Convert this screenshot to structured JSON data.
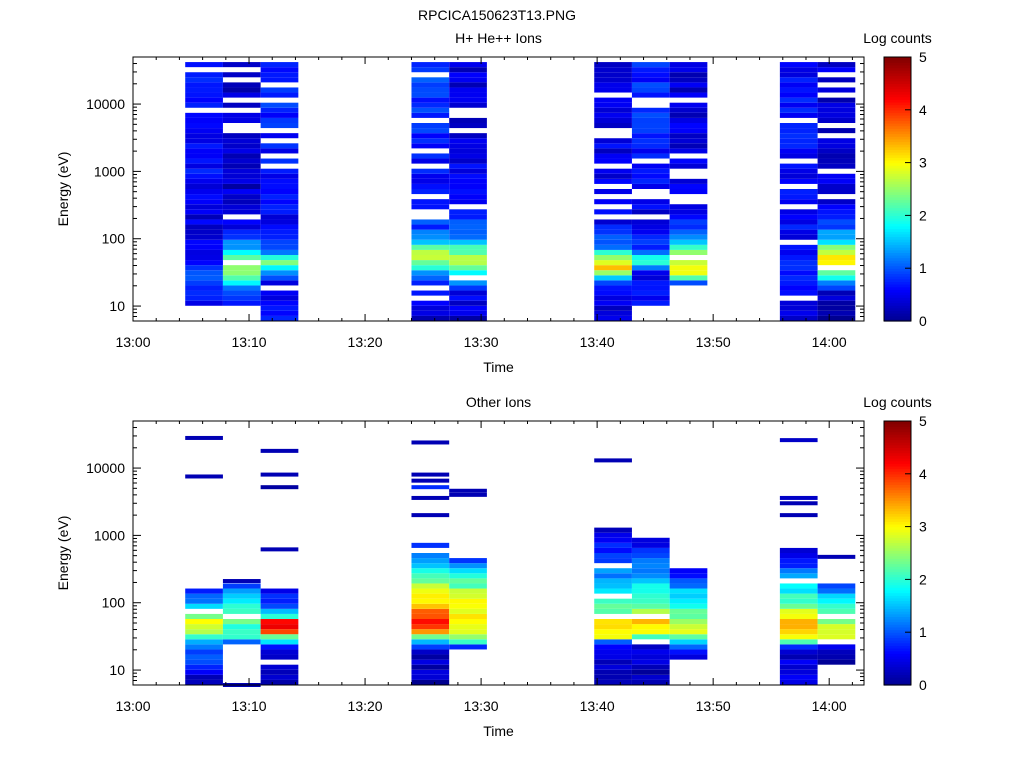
{
  "figure_title": "RPCICA150623T13.PNG",
  "colors": {
    "jet": [
      "#00008f",
      "#0000ff",
      "#00ffff",
      "#ffff00",
      "#ff0000",
      "#800000"
    ]
  },
  "chart_data": [
    {
      "type": "heatmap",
      "title": "H+ He++ Ions",
      "xlabel": "Time",
      "ylabel": "Energy (eV)",
      "x_axis": {
        "type": "time",
        "range": [
          "13:00",
          "14:03"
        ],
        "ticks": [
          "13:00",
          "13:10",
          "13:20",
          "13:30",
          "13:40",
          "13:50",
          "14:00"
        ]
      },
      "y_axis": {
        "scale": "log",
        "range": [
          6,
          50000
        ],
        "ticks": [
          10,
          100,
          1000,
          10000
        ],
        "tick_labels": [
          "10",
          "100",
          "1000",
          "10000"
        ]
      },
      "colorbar": {
        "label": "Log counts",
        "range": [
          0,
          5
        ],
        "ticks": [
          0,
          1,
          2,
          3,
          4,
          5
        ],
        "colormap": "jet"
      },
      "sweeps": [
        {
          "start": "13:04:30",
          "end": "13:07:45",
          "energy_range": [
            9.5,
            45000
          ],
          "profile": [
            [
              9.5,
              0.5
            ],
            [
              15,
              0.7
            ],
            [
              25,
              1.2
            ],
            [
              40,
              0.8
            ],
            [
              80,
              0.5
            ],
            [
              200,
              0.4
            ],
            [
              1000,
              0.6
            ],
            [
              10000,
              0.7
            ],
            [
              45000,
              0.6
            ]
          ]
        },
        {
          "start": "13:07:45",
          "end": "13:11:00",
          "energy_range": [
            9.5,
            45000
          ],
          "profile": [
            [
              9.5,
              0.6
            ],
            [
              15,
              0.8
            ],
            [
              30,
              2.6
            ],
            [
              45,
              2.4
            ],
            [
              70,
              1.4
            ],
            [
              150,
              0.4
            ],
            [
              1000,
              0.3
            ],
            [
              10000,
              0.4
            ],
            [
              45000,
              0.2
            ]
          ]
        },
        {
          "start": "13:11:00",
          "end": "13:14:15",
          "energy_range": [
            6,
            45000
          ],
          "profile": [
            [
              6,
              0.6
            ],
            [
              20,
              0.3
            ],
            [
              35,
              1.5
            ],
            [
              45,
              2.7
            ],
            [
              60,
              1.0
            ],
            [
              150,
              0.5
            ],
            [
              1000,
              0.6
            ],
            [
              10000,
              0.8
            ],
            [
              45000,
              0.7
            ]
          ]
        },
        {
          "start": "13:24:00",
          "end": "13:27:15",
          "energy_range": [
            6,
            45000
          ],
          "profile": [
            [
              6,
              0.3
            ],
            [
              15,
              0.6
            ],
            [
              25,
              0.8
            ],
            [
              40,
              2.0
            ],
            [
              60,
              2.8
            ],
            [
              80,
              1.8
            ],
            [
              150,
              0.9
            ],
            [
              1000,
              0.6
            ],
            [
              10000,
              0.8
            ],
            [
              45000,
              0.9
            ]
          ]
        },
        {
          "start": "13:27:15",
          "end": "13:30:30",
          "energy_range": [
            6,
            45000
          ],
          "profile": [
            [
              6,
              0.3
            ],
            [
              15,
              0.5
            ],
            [
              30,
              1.6
            ],
            [
              45,
              2.6
            ],
            [
              70,
              2.2
            ],
            [
              120,
              1.0
            ],
            [
              1000,
              0.5
            ],
            [
              10000,
              0.4
            ],
            [
              45000,
              0.4
            ]
          ]
        },
        {
          "start": "13:39:45",
          "end": "13:43:00",
          "energy_range": [
            6,
            45000
          ],
          "profile": [
            [
              6,
              0.3
            ],
            [
              15,
              0.6
            ],
            [
              25,
              1.2
            ],
            [
              35,
              3.2
            ],
            [
              50,
              2.5
            ],
            [
              80,
              1.0
            ],
            [
              200,
              0.5
            ],
            [
              1000,
              0.5
            ],
            [
              10000,
              0.4
            ],
            [
              45000,
              0.3
            ]
          ]
        },
        {
          "start": "13:43:00",
          "end": "13:46:15",
          "energy_range": [
            9.5,
            45000
          ],
          "profile": [
            [
              9.5,
              0.6
            ],
            [
              15,
              0.6
            ],
            [
              30,
              0.4
            ],
            [
              45,
              2.2
            ],
            [
              70,
              1.0
            ],
            [
              150,
              0.4
            ],
            [
              1000,
              0.6
            ],
            [
              10000,
              0.8
            ],
            [
              45000,
              0.7
            ]
          ]
        },
        {
          "start": "13:46:15",
          "end": "13:49:30",
          "energy_range": [
            20,
            45000
          ],
          "profile": [
            [
              20,
              0.5
            ],
            [
              30,
              2.8
            ],
            [
              50,
              2.9
            ],
            [
              80,
              1.8
            ],
            [
              150,
              0.7
            ],
            [
              1000,
              0.4
            ],
            [
              10000,
              0.4
            ],
            [
              45000,
              0.3
            ]
          ]
        },
        {
          "start": "13:55:45",
          "end": "13:59:00",
          "energy_range": [
            6,
            45000
          ],
          "profile": [
            [
              6,
              0.2
            ],
            [
              15,
              0.5
            ],
            [
              40,
              0.7
            ],
            [
              100,
              0.6
            ],
            [
              1000,
              0.5
            ],
            [
              10000,
              0.7
            ],
            [
              45000,
              0.6
            ]
          ]
        },
        {
          "start": "13:59:00",
          "end": "14:02:15",
          "energy_range": [
            6,
            45000
          ],
          "profile": [
            [
              6,
              0.2
            ],
            [
              15,
              0.3
            ],
            [
              30,
              2.2
            ],
            [
              40,
              3.3
            ],
            [
              60,
              2.8
            ],
            [
              90,
              1.8
            ],
            [
              200,
              0.6
            ],
            [
              1000,
              0.3
            ],
            [
              10000,
              0.3
            ],
            [
              45000,
              0.4
            ]
          ]
        }
      ]
    },
    {
      "type": "heatmap",
      "title": "Other Ions",
      "xlabel": "Time",
      "ylabel": "Energy (eV)",
      "x_axis": {
        "type": "time",
        "range": [
          "13:00",
          "14:03"
        ],
        "ticks": [
          "13:00",
          "13:10",
          "13:20",
          "13:30",
          "13:40",
          "13:50",
          "14:00"
        ]
      },
      "y_axis": {
        "scale": "log",
        "range": [
          6,
          50000
        ],
        "ticks": [
          10,
          100,
          1000,
          10000
        ],
        "tick_labels": [
          "10",
          "100",
          "1000",
          "10000"
        ]
      },
      "colorbar": {
        "label": "Log counts",
        "range": [
          0,
          5
        ],
        "ticks": [
          0,
          1,
          2,
          3,
          4,
          5
        ],
        "colormap": "jet"
      },
      "sweeps": [
        {
          "start": "13:04:30",
          "end": "13:07:45",
          "energy_range": [
            6,
            170
          ],
          "profile": [
            [
              6,
              0.2
            ],
            [
              12,
              0.8
            ],
            [
              25,
              1.3
            ],
            [
              35,
              2.6
            ],
            [
              50,
              3.0
            ],
            [
              70,
              1.8
            ],
            [
              110,
              1.1
            ],
            [
              170,
              0.6
            ]
          ],
          "lines": [
            [
              28000,
              0.2
            ],
            [
              7500,
              0.2
            ]
          ]
        },
        {
          "start": "13:07:45",
          "end": "13:11:00",
          "energy_range": [
            24,
            200
          ],
          "profile": [
            [
              24,
              0.3
            ],
            [
              30,
              2.0
            ],
            [
              50,
              2.2
            ],
            [
              80,
              2.0
            ],
            [
              120,
              1.5
            ],
            [
              200,
              0.8
            ]
          ],
          "lines": [
            [
              210,
              0.2
            ],
            [
              6,
              0.2
            ]
          ]
        },
        {
          "start": "13:11:00",
          "end": "13:14:15",
          "energy_range": [
            6,
            170
          ],
          "profile": [
            [
              6,
              0.3
            ],
            [
              20,
              0.2
            ],
            [
              32,
              2.5
            ],
            [
              40,
              4.3
            ],
            [
              52,
              4.1
            ],
            [
              65,
              1.5
            ],
            [
              100,
              0.9
            ],
            [
              170,
              0.6
            ]
          ],
          "lines": [
            [
              18000,
              0.2
            ],
            [
              8000,
              0.2
            ],
            [
              5200,
              0.1
            ],
            [
              620,
              0.2
            ]
          ]
        },
        {
          "start": "13:24:00",
          "end": "13:27:15",
          "energy_range": [
            6,
            800
          ],
          "profile": [
            [
              6,
              0.2
            ],
            [
              20,
              0.3
            ],
            [
              30,
              2.0
            ],
            [
              40,
              3.8
            ],
            [
              60,
              4.0
            ],
            [
              90,
              3.4
            ],
            [
              150,
              2.8
            ],
            [
              300,
              2.0
            ],
            [
              500,
              1.2
            ],
            [
              800,
              0.7
            ]
          ],
          "lines": [
            [
              24000,
              0.2
            ],
            [
              8000,
              0.2
            ],
            [
              6500,
              0.2
            ],
            [
              5200,
              0.8
            ],
            [
              3600,
              0.2
            ],
            [
              2000,
              0.2
            ]
          ]
        },
        {
          "start": "13:27:15",
          "end": "13:30:30",
          "energy_range": [
            20,
            500
          ],
          "profile": [
            [
              20,
              0.3
            ],
            [
              28,
              2.4
            ],
            [
              45,
              2.8
            ],
            [
              80,
              3.0
            ],
            [
              150,
              2.6
            ],
            [
              250,
              1.8
            ],
            [
              400,
              1.0
            ],
            [
              500,
              0.6
            ]
          ],
          "lines": [
            [
              4600,
              0.2
            ],
            [
              4000,
              0.2
            ]
          ]
        },
        {
          "start": "13:39:45",
          "end": "13:43:00",
          "energy_range": [
            6,
            1400
          ],
          "profile": [
            [
              6,
              0.2
            ],
            [
              25,
              0.4
            ],
            [
              30,
              3.0
            ],
            [
              45,
              3.3
            ],
            [
              70,
              2.5
            ],
            [
              120,
              1.8
            ],
            [
              250,
              1.3
            ],
            [
              500,
              0.8
            ],
            [
              1000,
              0.4
            ],
            [
              1400,
              0.2
            ]
          ],
          "lines": [
            [
              13000,
              0.2
            ]
          ]
        },
        {
          "start": "13:43:00",
          "end": "13:46:15",
          "energy_range": [
            6,
            900
          ],
          "profile": [
            [
              6,
              0.2
            ],
            [
              25,
              0.4
            ],
            [
              35,
              2.8
            ],
            [
              52,
              3.4
            ],
            [
              80,
              2.4
            ],
            [
              150,
              1.8
            ],
            [
              300,
              1.3
            ],
            [
              600,
              0.7
            ],
            [
              900,
              0.3
            ]
          ]
        },
        {
          "start": "13:46:15",
          "end": "13:49:30",
          "energy_range": [
            15,
            300
          ],
          "profile": [
            [
              15,
              0.2
            ],
            [
              25,
              1.2
            ],
            [
              35,
              2.8
            ],
            [
              60,
              2.4
            ],
            [
              100,
              2.0
            ],
            [
              180,
              1.2
            ],
            [
              300,
              0.5
            ]
          ]
        },
        {
          "start": "13:55:45",
          "end": "13:59:00",
          "energy_range": [
            6,
            700
          ],
          "profile": [
            [
              6,
              0.7
            ],
            [
              20,
              0.3
            ],
            [
              30,
              3.0
            ],
            [
              42,
              3.6
            ],
            [
              60,
              3.0
            ],
            [
              100,
              2.3
            ],
            [
              200,
              1.5
            ],
            [
              400,
              0.8
            ],
            [
              700,
              0.3
            ]
          ],
          "lines": [
            [
              26000,
              0.3
            ],
            [
              3600,
              0.3
            ],
            [
              3000,
              0.2
            ],
            [
              2000,
              0.2
            ]
          ]
        },
        {
          "start": "13:59:00",
          "end": "14:02:15",
          "energy_range": [
            12,
            200
          ],
          "profile": [
            [
              12,
              0.2
            ],
            [
              25,
              0.5
            ],
            [
              30,
              3.0
            ],
            [
              45,
              2.7
            ],
            [
              80,
              2.0
            ],
            [
              130,
              1.5
            ],
            [
              200,
              0.8
            ]
          ],
          "lines": [
            [
              480,
              0.2
            ]
          ]
        }
      ]
    }
  ]
}
